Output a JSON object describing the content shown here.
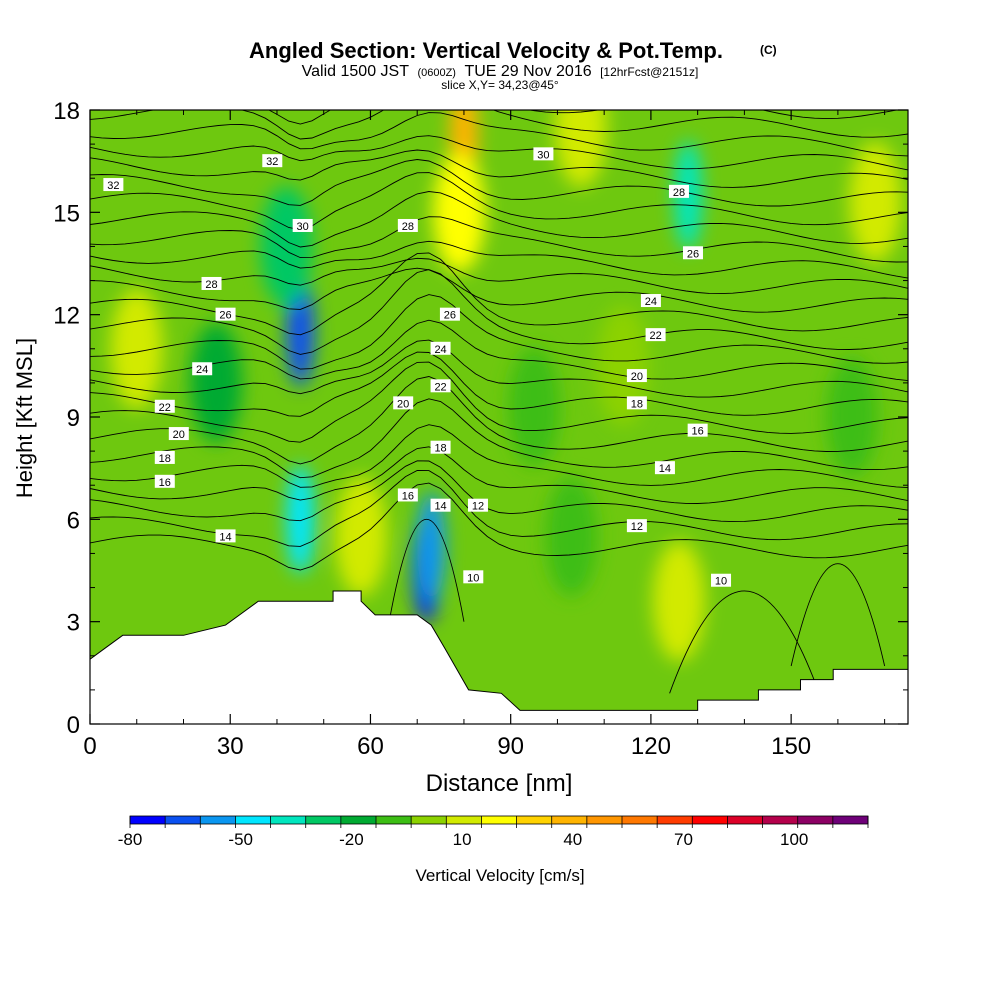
{
  "title": {
    "main": "Angled Section: Vertical Velocity & Pot.Temp.",
    "main_unit": "(C)",
    "valid_prefix": "Valid 1500 JST",
    "valid_utc": "(0600Z)",
    "valid_date": "TUE 29 Nov 2016",
    "forecast": "[12hrFcst@2151z]",
    "slice": "slice X,Y= 34,23@45°"
  },
  "chart_data": {
    "type": "heatmap",
    "xlabel": "Distance [nm]",
    "ylabel": "Height [Kft MSL]",
    "xlim": [
      0,
      175
    ],
    "ylim": [
      0,
      18
    ],
    "x_ticks": [
      0,
      30,
      60,
      90,
      120,
      150
    ],
    "y_ticks": [
      0,
      3,
      6,
      9,
      12,
      15,
      18
    ],
    "colorbar": {
      "label": "Vertical Velocity [cm/s]",
      "min": -80,
      "max": 120,
      "step": 10,
      "tick_labels": [
        "-80",
        "-50",
        "-20",
        "10",
        "40",
        "70",
        "100"
      ],
      "tick_values": [
        -80,
        -50,
        -20,
        10,
        40,
        70,
        100
      ],
      "colors": [
        "#0000ff",
        "#0a50f0",
        "#0a96f0",
        "#00e6ff",
        "#00e6be",
        "#00c864",
        "#00aa32",
        "#3cbe14",
        "#8cd200",
        "#d2ea00",
        "#ffff00",
        "#ffd200",
        "#ffb400",
        "#ff9600",
        "#ff7800",
        "#ff3c00",
        "#ff0000",
        "#dc0028",
        "#b4004b",
        "#8c0064",
        "#6e0078"
      ]
    },
    "terrain_top": [
      [
        0,
        1.9
      ],
      [
        3,
        2.2
      ],
      [
        7,
        2.6
      ],
      [
        20,
        2.6
      ],
      [
        29,
        2.9
      ],
      [
        32,
        3.2
      ],
      [
        36,
        3.6
      ],
      [
        52,
        3.6
      ],
      [
        52,
        3.9
      ],
      [
        58,
        3.9
      ],
      [
        58,
        3.6
      ],
      [
        61,
        3.2
      ],
      [
        70,
        3.2
      ],
      [
        73,
        2.9
      ],
      [
        76,
        2.2
      ],
      [
        81,
        1.0
      ],
      [
        88,
        0.9
      ],
      [
        92,
        0.4
      ],
      [
        130,
        0.4
      ],
      [
        130,
        0.7
      ],
      [
        143,
        0.7
      ],
      [
        143,
        1.0
      ],
      [
        152,
        1.0
      ],
      [
        152,
        1.3
      ],
      [
        159,
        1.3
      ],
      [
        159,
        1.6
      ],
      [
        175,
        1.6
      ]
    ],
    "velocity_features": [
      {
        "x": 45,
        "y": 11.5,
        "value": -70
      },
      {
        "x": 45,
        "y": 6,
        "value": -50
      },
      {
        "x": 72,
        "y": 4.6,
        "value": -80
      },
      {
        "x": 73,
        "y": 5.2,
        "value": -60
      },
      {
        "x": 58,
        "y": 5.5,
        "value": 15
      },
      {
        "x": 80,
        "y": 17.3,
        "value": 45
      },
      {
        "x": 79,
        "y": 15,
        "value": 25
      },
      {
        "x": 105,
        "y": 17.5,
        "value": 15
      },
      {
        "x": 126,
        "y": 3.6,
        "value": 15
      },
      {
        "x": 168,
        "y": 15.3,
        "value": 15
      },
      {
        "x": 10,
        "y": 11,
        "value": 10
      },
      {
        "x": 128,
        "y": 15.5,
        "value": -40
      },
      {
        "x": 42,
        "y": 14,
        "value": -25
      },
      {
        "x": 27,
        "y": 10,
        "value": -15
      },
      {
        "x": 163,
        "y": 9,
        "value": -10
      },
      {
        "x": 103,
        "y": 5.5,
        "value": -10
      },
      {
        "x": 114,
        "y": 10.5,
        "value": 0
      },
      {
        "x": 95,
        "y": 9.3,
        "value": -5
      }
    ],
    "contour_labels": [
      {
        "text": "32",
        "x": 5,
        "y": 15.8
      },
      {
        "text": "32",
        "x": 39,
        "y": 16.5
      },
      {
        "text": "30",
        "x": 45.5,
        "y": 14.6
      },
      {
        "text": "28",
        "x": 68,
        "y": 14.6
      },
      {
        "text": "30",
        "x": 97,
        "y": 16.7
      },
      {
        "text": "28",
        "x": 126,
        "y": 15.6
      },
      {
        "text": "26",
        "x": 129,
        "y": 13.8
      },
      {
        "text": "28",
        "x": 26,
        "y": 12.9
      },
      {
        "text": "26",
        "x": 29,
        "y": 12.0
      },
      {
        "text": "26",
        "x": 77,
        "y": 12.0
      },
      {
        "text": "24",
        "x": 24,
        "y": 10.4
      },
      {
        "text": "24",
        "x": 75,
        "y": 11.0
      },
      {
        "text": "24",
        "x": 120,
        "y": 12.4
      },
      {
        "text": "22",
        "x": 16,
        "y": 9.3
      },
      {
        "text": "22",
        "x": 75,
        "y": 9.9
      },
      {
        "text": "22",
        "x": 121,
        "y": 11.4
      },
      {
        "text": "20",
        "x": 19,
        "y": 8.5
      },
      {
        "text": "20",
        "x": 67,
        "y": 9.4
      },
      {
        "text": "20",
        "x": 117,
        "y": 10.2
      },
      {
        "text": "18",
        "x": 16,
        "y": 7.8
      },
      {
        "text": "18",
        "x": 75,
        "y": 8.1
      },
      {
        "text": "18",
        "x": 117,
        "y": 9.4
      },
      {
        "text": "16",
        "x": 16,
        "y": 7.1
      },
      {
        "text": "16",
        "x": 68,
        "y": 6.7
      },
      {
        "text": "16",
        "x": 130,
        "y": 8.6
      },
      {
        "text": "14",
        "x": 29,
        "y": 5.5
      },
      {
        "text": "14",
        "x": 75,
        "y": 6.4
      },
      {
        "text": "14",
        "x": 123,
        "y": 7.5
      },
      {
        "text": "12",
        "x": 83,
        "y": 6.4
      },
      {
        "text": "12",
        "x": 117,
        "y": 5.8
      },
      {
        "text": "10",
        "x": 82,
        "y": 4.3
      },
      {
        "text": "10",
        "x": 135,
        "y": 4.2
      }
    ]
  }
}
